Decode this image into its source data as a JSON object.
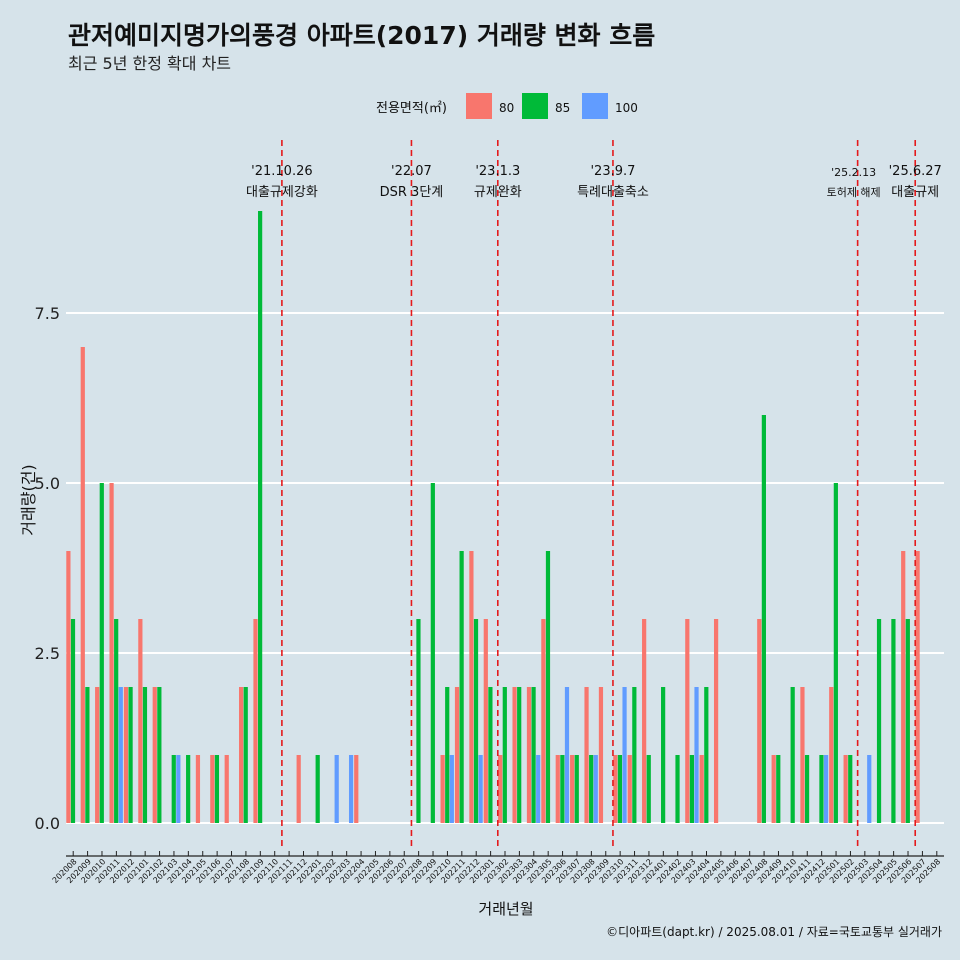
{
  "title": "관저예미지명가의풍경 아파트(2017) 거래량 변화 흐름",
  "subtitle": "최근 5년 한정 확대 차트",
  "legend_title": "전용면적(㎡)",
  "caption": "©디아파트(dapt.kr) / 2025.08.01 / 자료=국토교통부 실거래가",
  "colors": {
    "background": "#d6e3ea",
    "gridline": "#ffffff",
    "event_line": "#e41a1c",
    "axis": "#222222"
  },
  "chart_data": {
    "type": "bar",
    "title": "관저예미지명가의풍경 아파트(2017) 거래량 변화 흐름",
    "subtitle": "최근 5년 한정 확대 차트",
    "xlabel": "거래년월",
    "ylabel": "거래량(건)",
    "ylim": [
      -0.45,
      9.6
    ],
    "yticks": [
      0.0,
      2.5,
      5.0,
      7.5
    ],
    "ytick_labels": [
      "0.0",
      "2.5",
      "5.0",
      "7.5"
    ],
    "grid": true,
    "legend_position": "top",
    "categories": [
      "202008",
      "202009",
      "202010",
      "202011",
      "202012",
      "202101",
      "202102",
      "202103",
      "202104",
      "202105",
      "202106",
      "202107",
      "202108",
      "202109",
      "202110",
      "202111",
      "202112",
      "202201",
      "202202",
      "202203",
      "202204",
      "202205",
      "202206",
      "202207",
      "202208",
      "202209",
      "202210",
      "202211",
      "202212",
      "202301",
      "202302",
      "202303",
      "202304",
      "202305",
      "202306",
      "202307",
      "202308",
      "202309",
      "202310",
      "202311",
      "202312",
      "202401",
      "202402",
      "202403",
      "202404",
      "202405",
      "202406",
      "202407",
      "202408",
      "202409",
      "202410",
      "202411",
      "202412",
      "202501",
      "202502",
      "202503",
      "202504",
      "202505",
      "202506",
      "202507",
      "202508"
    ],
    "series": [
      {
        "name": "80",
        "color": "#f8766d",
        "values": [
          4,
          7,
          2,
          5,
          2,
          3,
          2,
          0,
          0,
          1,
          1,
          1,
          2,
          3,
          0,
          0,
          1,
          0,
          0,
          0,
          1,
          0,
          0,
          0,
          0,
          0,
          1,
          2,
          4,
          3,
          1,
          2,
          2,
          3,
          1,
          1,
          2,
          2,
          1,
          1,
          3,
          0,
          0,
          3,
          1,
          3,
          0,
          0,
          3,
          1,
          0,
          2,
          0,
          2,
          1,
          0,
          0,
          0,
          4,
          4,
          0
        ]
      },
      {
        "name": "85",
        "color": "#00ba38",
        "values": [
          3,
          2,
          5,
          3,
          2,
          2,
          2,
          1,
          1,
          0,
          1,
          0,
          2,
          9,
          0,
          0,
          0,
          1,
          0,
          0,
          0,
          0,
          0,
          0,
          3,
          5,
          2,
          4,
          3,
          2,
          2,
          2,
          2,
          4,
          1,
          1,
          1,
          0,
          1,
          2,
          1,
          2,
          1,
          1,
          2,
          0,
          0,
          0,
          6,
          1,
          2,
          1,
          1,
          5,
          1,
          0,
          3,
          3,
          3,
          0,
          0
        ]
      },
      {
        "name": "100",
        "color": "#619cff",
        "values": [
          0,
          0,
          0,
          2,
          0,
          0,
          0,
          1,
          0,
          0,
          0,
          0,
          0,
          0,
          0,
          0,
          0,
          0,
          1,
          1,
          0,
          0,
          0,
          0,
          0,
          0,
          1,
          0,
          1,
          0,
          0,
          0,
          1,
          0,
          2,
          0,
          1,
          0,
          2,
          0,
          0,
          0,
          0,
          2,
          0,
          0,
          0,
          0,
          0,
          0,
          0,
          0,
          1,
          0,
          0,
          1,
          0,
          0,
          0,
          0,
          0
        ]
      }
    ],
    "events": [
      {
        "after_category": "202110",
        "date_label": "'21.10.26",
        "label": "대출규제강화"
      },
      {
        "after_category": "202207",
        "date_label": "'22.07",
        "label": "DSR 3단계"
      },
      {
        "after_category": "202301",
        "date_label": "'23.1.3",
        "label": "규제완화"
      },
      {
        "after_category": "202309",
        "date_label": "'23.9.7",
        "label": "특례대출축소"
      },
      {
        "after_category": "202502",
        "date_label": "'25.2.13",
        "label": "토허제 해제"
      },
      {
        "after_category": "202506",
        "date_label": "'25.6.27",
        "label": "대출규제"
      }
    ]
  }
}
